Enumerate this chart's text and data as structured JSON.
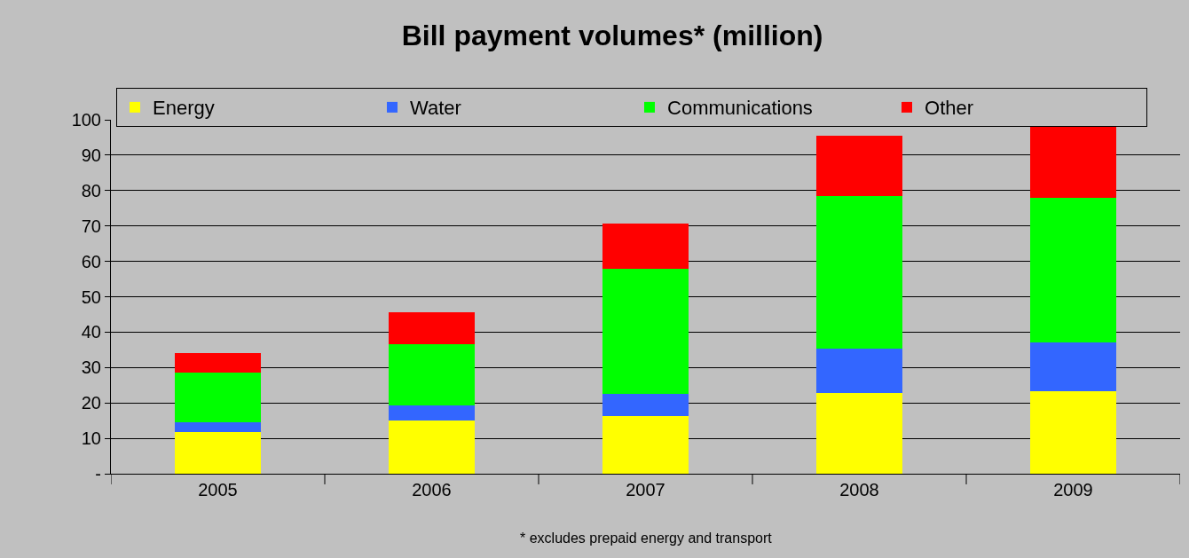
{
  "chart_data": {
    "type": "bar",
    "title": "Bill payment volumes* (million)",
    "stacked": true,
    "categories": [
      "2005",
      "2006",
      "2007",
      "2008",
      "2009"
    ],
    "series": [
      {
        "name": "Energy",
        "color": "#ffff00",
        "values": [
          11.8,
          15,
          16.3,
          22.8,
          23.3
        ]
      },
      {
        "name": "Water",
        "color": "#3366ff",
        "values": [
          2.7,
          4.3,
          6.2,
          12.5,
          13.7
        ]
      },
      {
        "name": "Communications",
        "color": "#00ff00",
        "values": [
          14,
          17.2,
          35.3,
          43.2,
          41
        ]
      },
      {
        "name": "Other",
        "color": "#ff0000",
        "values": [
          5.5,
          9,
          13,
          17,
          20.5
        ]
      }
    ],
    "ylim": [
      0,
      100
    ],
    "yticks": [
      {
        "value": 0,
        "label": "-"
      },
      10,
      20,
      30,
      40,
      50,
      60,
      70,
      80,
      90,
      100
    ],
    "grid": "y",
    "legend": "top left",
    "annotations": [
      "* excludes prepaid energy and transport"
    ]
  }
}
